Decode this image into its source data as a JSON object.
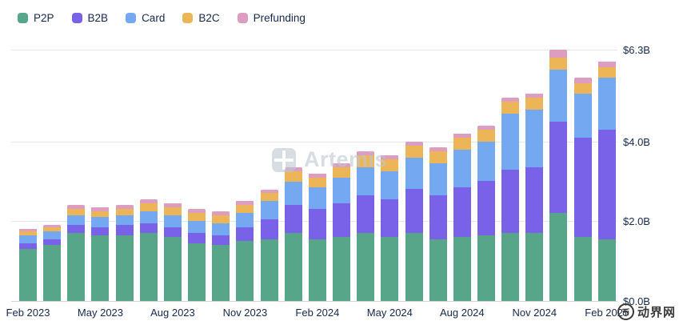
{
  "legend": {
    "items": [
      {
        "label": "P2P",
        "color": "#58a689"
      },
      {
        "label": "B2B",
        "color": "#7a62e8"
      },
      {
        "label": "Card",
        "color": "#74a9f2"
      },
      {
        "label": "B2C",
        "color": "#ecb558"
      },
      {
        "label": "Prefunding",
        "color": "#dd9dc0"
      }
    ]
  },
  "y_axis": {
    "ticks": [
      {
        "label": "$6.3B",
        "value": 6.3
      },
      {
        "label": "$4.0B",
        "value": 4.0
      },
      {
        "label": "$2.0B",
        "value": 2.0
      },
      {
        "label": "$0.0B",
        "value": 0.0
      }
    ]
  },
  "watermark": {
    "text": "Artemis"
  },
  "corner_watermark": {
    "badge": "币",
    "text": "动界网"
  },
  "chart_data": {
    "type": "bar",
    "stacked": true,
    "title": "",
    "xlabel": "",
    "ylabel": "",
    "ylim": [
      0,
      6.3
    ],
    "grid": true,
    "legend_position": "top-left",
    "categories": [
      "Feb 2023",
      "Mar 2023",
      "Apr 2023",
      "May 2023",
      "Jun 2023",
      "Jul 2023",
      "Aug 2023",
      "Sep 2023",
      "Oct 2023",
      "Nov 2023",
      "Dec 2023",
      "Jan 2024",
      "Feb 2024",
      "Mar 2024",
      "Apr 2024",
      "May 2024",
      "Jun 2024",
      "Jul 2024",
      "Aug 2024",
      "Sep 2024",
      "Oct 2024",
      "Nov 2024",
      "Dec 2024",
      "Jan 2025",
      "Feb 2025"
    ],
    "x_tick_labels": [
      "Feb 2023",
      "",
      "",
      "May 2023",
      "",
      "",
      "Aug 2023",
      "",
      "",
      "Nov 2023",
      "",
      "",
      "Feb 2024",
      "",
      "",
      "May 2024",
      "",
      "",
      "Aug 2024",
      "",
      "",
      "Nov 2024",
      "",
      "",
      "Feb 2025"
    ],
    "series": [
      {
        "name": "P2P",
        "color": "#58a689",
        "values": [
          1.3,
          1.4,
          1.7,
          1.65,
          1.65,
          1.7,
          1.6,
          1.45,
          1.4,
          1.5,
          1.55,
          1.7,
          1.55,
          1.6,
          1.7,
          1.6,
          1.7,
          1.55,
          1.6,
          1.65,
          1.7,
          1.7,
          2.2,
          1.6,
          1.55
        ]
      },
      {
        "name": "B2B",
        "color": "#7a62e8",
        "values": [
          0.15,
          0.15,
          0.2,
          0.2,
          0.25,
          0.25,
          0.25,
          0.25,
          0.25,
          0.35,
          0.5,
          0.7,
          0.75,
          0.85,
          0.95,
          0.95,
          1.1,
          1.1,
          1.25,
          1.35,
          1.6,
          1.65,
          2.3,
          2.5,
          2.75
        ]
      },
      {
        "name": "Card",
        "color": "#74a9f2",
        "values": [
          0.2,
          0.2,
          0.25,
          0.25,
          0.25,
          0.3,
          0.3,
          0.3,
          0.3,
          0.35,
          0.45,
          0.6,
          0.55,
          0.65,
          0.7,
          0.7,
          0.8,
          0.8,
          0.95,
          1.0,
          1.4,
          1.45,
          1.3,
          1.1,
          1.3
        ]
      },
      {
        "name": "B2C",
        "color": "#ecb558",
        "values": [
          0.1,
          0.1,
          0.15,
          0.15,
          0.15,
          0.2,
          0.2,
          0.2,
          0.2,
          0.2,
          0.2,
          0.25,
          0.25,
          0.25,
          0.3,
          0.3,
          0.3,
          0.3,
          0.3,
          0.3,
          0.3,
          0.3,
          0.3,
          0.25,
          0.25
        ]
      },
      {
        "name": "Prefunding",
        "color": "#dd9dc0",
        "values": [
          0.05,
          0.05,
          0.1,
          0.1,
          0.1,
          0.1,
          0.1,
          0.1,
          0.1,
          0.1,
          0.1,
          0.1,
          0.1,
          0.1,
          0.1,
          0.1,
          0.1,
          0.1,
          0.1,
          0.1,
          0.1,
          0.1,
          0.2,
          0.15,
          0.15
        ]
      }
    ]
  }
}
